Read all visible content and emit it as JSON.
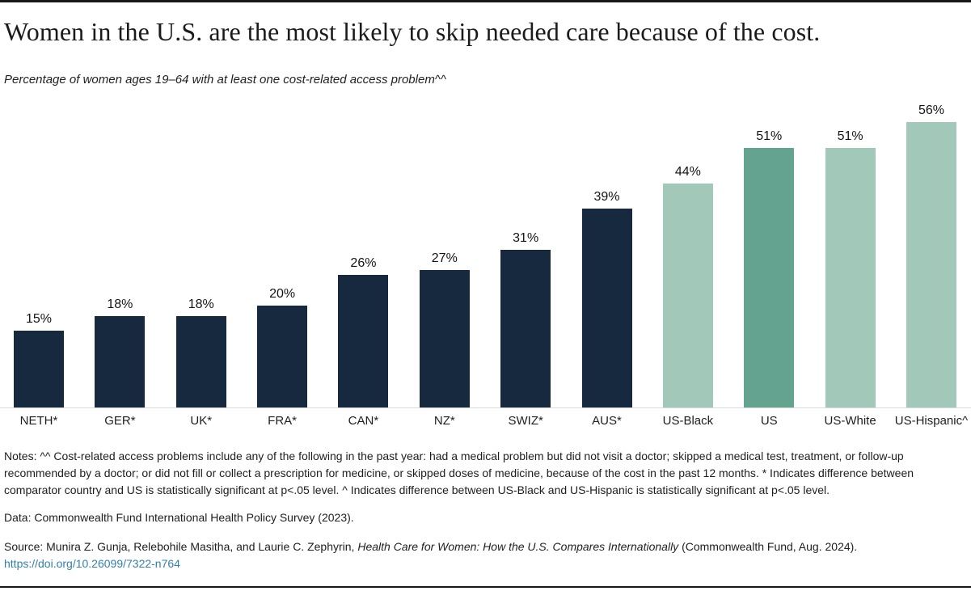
{
  "header": {
    "title": "Women in the U.S. are the most likely to skip needed care because of the cost.",
    "subtitle": "Percentage of women ages 19–64 with at least one cost-related access problem^^"
  },
  "chart_data": {
    "type": "bar",
    "title": "Women in the U.S. are the most likely to skip needed care because of the cost.",
    "subtitle": "Percentage of women ages 19–64 with at least one cost-related access problem^^",
    "categories": [
      "NETH*",
      "GER*",
      "UK*",
      "FRA*",
      "CAN*",
      "NZ*",
      "SWIZ*",
      "AUS*",
      "US-Black",
      "US",
      "US-White",
      "US-Hispanic^"
    ],
    "values": [
      15,
      18,
      18,
      20,
      26,
      27,
      31,
      39,
      44,
      51,
      51,
      56
    ],
    "value_labels": [
      "15%",
      "18%",
      "18%",
      "20%",
      "26%",
      "27%",
      "31%",
      "39%",
      "44%",
      "51%",
      "51%",
      "56%"
    ],
    "bar_colors": [
      "#16293e",
      "#16293e",
      "#16293e",
      "#16293e",
      "#16293e",
      "#16293e",
      "#16293e",
      "#16293e",
      "#a2c8ba",
      "#64a390",
      "#a2c8ba",
      "#a2c8ba"
    ],
    "xlabel": "",
    "ylabel": "",
    "ylim": [
      0,
      59
    ],
    "grid": false,
    "legend": "none",
    "value_label_position": "above bars",
    "baseline_axis_color": "#d9d9d9"
  },
  "footer": {
    "notes": "Notes: ^^ Cost-related access problems include any of the following in the past year: had a medical problem but did not visit a doctor; skipped a medical test, treatment, or follow-up recommended by a doctor; or did not fill or collect a prescription for medicine, or skipped doses of medicine, because of the cost in the past 12 months. * Indicates difference between comparator country and US is statistically significant at p<.05 level. ^ Indicates difference between US-Black and US-Hispanic is statistically significant at p<.05 level.",
    "data_line": "Data: Commonwealth Fund International Health Policy Survey (2023).",
    "source_prefix": "Source: Munira Z. Gunja, Relebohile Masitha, and Laurie C. Zephyrin, ",
    "source_title": "Health Care for Women: How the U.S. Compares Internationally",
    "source_suffix": " (Commonwealth Fund, Aug. 2024).",
    "doi_link": "https://doi.org/10.26099/7322-n764"
  },
  "colors": {
    "navy": "#16293e",
    "green_light": "#a2c8ba",
    "green_medium": "#64a390",
    "axis_line": "#d9d9d9",
    "link": "#3380ad",
    "rule": "#171717"
  }
}
